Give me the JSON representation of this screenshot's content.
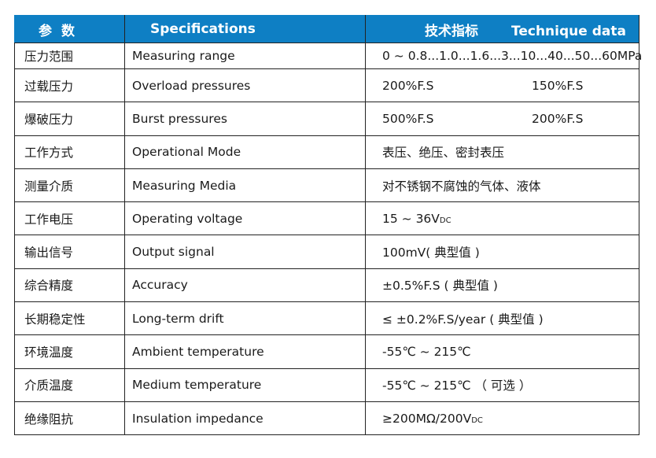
{
  "header": {
    "param": "参数",
    "specifications": "Specifications",
    "tech_cn": "技术指标",
    "tech_en": "Technique data"
  },
  "rows": [
    {
      "cn": "压力范围",
      "en": "Measuring range",
      "value": "0 ~ 0.8...1.0...1.6...3...10...40...50...60MPa"
    },
    {
      "cn": "过载压力",
      "en": "Overload pressures",
      "value": "200%F.S",
      "value2": "150%F.S"
    },
    {
      "cn": "爆破压力",
      "en": "Burst pressures",
      "value": "500%F.S",
      "value2": "200%F.S"
    },
    {
      "cn": "工作方式",
      "en": "Operational Mode",
      "value": "表压、绝压、密封表压"
    },
    {
      "cn": "测量介质",
      "en": "Measuring Media",
      "value": "对不锈钢不腐蚀的气体、液体"
    },
    {
      "cn": "工作电压",
      "en": "Operating voltage",
      "value": "15 ~ 36V",
      "sub": "DC"
    },
    {
      "cn": "输出信号",
      "en": "Output signal",
      "value": "100mV( 典型值 )"
    },
    {
      "cn": "综合精度",
      "en": "Accuracy",
      "value": "±0.5%F.S ( 典型值 )"
    },
    {
      "cn": "长期稳定性",
      "en": "Long-term drift",
      "value": "≤ ±0.2%F.S/year ( 典型值 )"
    },
    {
      "cn": "环境温度",
      "en": "Ambient temperature",
      "value": "-55℃ ~ 215℃"
    },
    {
      "cn": "介质温度",
      "en": "Medium temperature",
      "value": "-55℃ ~ 215℃ （ 可选 ）"
    },
    {
      "cn": "绝缘阻抗",
      "en": "Insulation impedance",
      "value": "≥200MΩ/200V",
      "sub": "DC"
    }
  ],
  "colors": {
    "header_bg": "#0e7fc4",
    "header_text": "#ffffff",
    "border": "#222222"
  }
}
